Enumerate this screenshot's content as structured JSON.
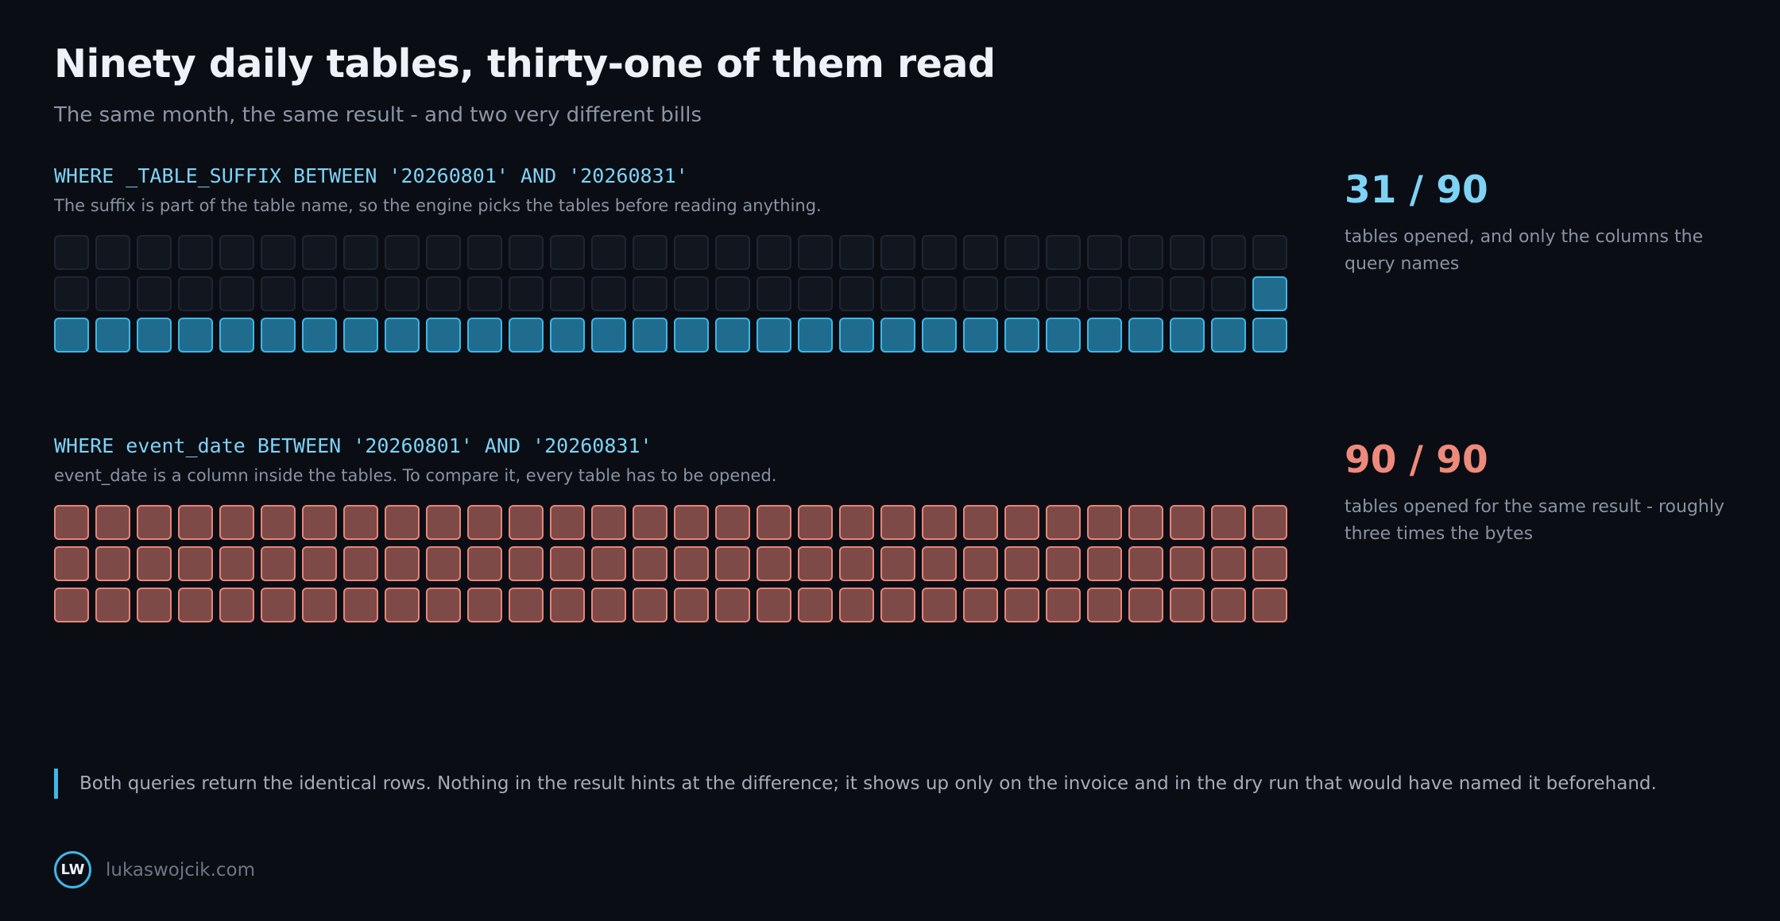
{
  "title": "Ninety daily tables, thirty-one of them read",
  "subtitle": "The same month, the same result - and two very different bills",
  "panels": [
    {
      "query": "WHERE _TABLE_SUFFIX BETWEEN '20260801' AND '20260831'",
      "note": "The suffix is part of the table name, so the engine picks the tables before reading anything.",
      "stat": "31 / 90",
      "stat_desc": "tables opened, and only the columns the query names",
      "tables_total": 90,
      "tables_opened": 31,
      "color": "#3fb6e6"
    },
    {
      "query": "WHERE event_date BETWEEN '20260801' AND '20260831'",
      "note": "event_date is a column inside the tables. To compare it, every table has to be opened.",
      "stat": "90 / 90",
      "stat_desc": "tables opened for the same result - roughly three times the bytes",
      "tables_total": 90,
      "tables_opened": 90,
      "color": "#e88578"
    }
  ],
  "footnote": "Both queries return the identical rows. Nothing in the result hints at the difference; it shows up only on the invoice and in the dry run that would have named it beforehand.",
  "brand": {
    "logo_text": "LW",
    "url": "lukaswojcik.com"
  }
}
